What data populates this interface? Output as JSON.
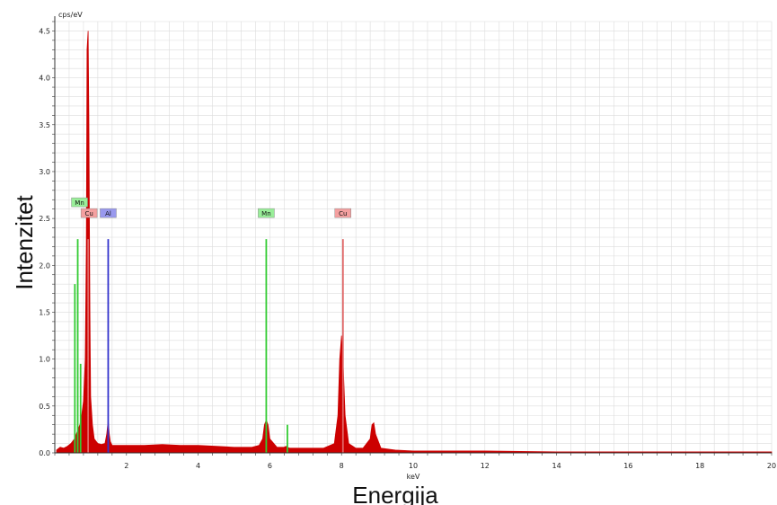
{
  "chart_data": {
    "type": "line",
    "xlabel": "Energija",
    "ylabel": "Intenzitet",
    "x_unit": "keV",
    "y_unit": "cps/eV",
    "xlim": [
      0,
      20
    ],
    "ylim": [
      0,
      4.6
    ],
    "x_ticks": [
      2,
      4,
      6,
      8,
      10,
      12,
      14,
      16,
      18,
      20
    ],
    "y_ticks": [
      0.0,
      0.5,
      1.0,
      1.5,
      2.0,
      2.5,
      3.0,
      3.5,
      4.0,
      4.5
    ],
    "grid": true,
    "colors": {
      "spectrum": "#cc0000",
      "Mn": "#33cc33",
      "Cu": "#e06666",
      "Al": "#3333cc",
      "grid": "#dcdcdc"
    },
    "series": [
      {
        "name": "spectrum",
        "x": [
          0.05,
          0.15,
          0.25,
          0.35,
          0.45,
          0.55,
          0.6,
          0.65,
          0.7,
          0.75,
          0.8,
          0.85,
          0.88,
          0.9,
          0.93,
          0.95,
          0.98,
          1.0,
          1.05,
          1.1,
          1.2,
          1.3,
          1.4,
          1.45,
          1.49,
          1.52,
          1.55,
          1.6,
          1.8,
          2.0,
          2.5,
          3.0,
          3.5,
          4.0,
          4.5,
          5.0,
          5.5,
          5.7,
          5.8,
          5.85,
          5.9,
          5.95,
          6.0,
          6.2,
          6.4,
          6.45,
          6.49,
          6.55,
          6.7,
          7.0,
          7.5,
          7.8,
          7.9,
          7.95,
          8.0,
          8.05,
          8.1,
          8.2,
          8.4,
          8.6,
          8.8,
          8.85,
          8.9,
          8.95,
          9.1,
          9.5,
          10.0,
          11.0,
          12.0,
          14.0,
          16.0,
          18.0,
          20.0
        ],
        "values": [
          0.03,
          0.06,
          0.05,
          0.07,
          0.1,
          0.15,
          0.2,
          0.25,
          0.3,
          0.4,
          0.55,
          1.0,
          2.2,
          4.3,
          4.5,
          3.6,
          1.5,
          0.6,
          0.3,
          0.15,
          0.1,
          0.09,
          0.1,
          0.2,
          0.35,
          0.2,
          0.12,
          0.08,
          0.08,
          0.08,
          0.08,
          0.09,
          0.08,
          0.08,
          0.07,
          0.06,
          0.06,
          0.08,
          0.15,
          0.3,
          0.35,
          0.3,
          0.15,
          0.06,
          0.06,
          0.07,
          0.06,
          0.05,
          0.05,
          0.05,
          0.05,
          0.1,
          0.4,
          1.0,
          1.25,
          0.9,
          0.4,
          0.1,
          0.05,
          0.05,
          0.15,
          0.3,
          0.32,
          0.2,
          0.05,
          0.03,
          0.02,
          0.02,
          0.02,
          0.01,
          0.01,
          0.01,
          0.01
        ]
      }
    ],
    "element_markers": [
      {
        "element": "Mn",
        "energy": 0.56,
        "height": 1.8,
        "label": ""
      },
      {
        "element": "Mn",
        "energy": 0.64,
        "height": 2.28,
        "label": "Mn"
      },
      {
        "element": "Mn",
        "energy": 0.72,
        "height": 0.95,
        "label": ""
      },
      {
        "element": "Cu",
        "energy": 0.93,
        "height": 2.28,
        "label": "Cu"
      },
      {
        "element": "Al",
        "energy": 1.49,
        "height": 2.28,
        "label": "Al"
      },
      {
        "element": "Mn",
        "energy": 5.9,
        "height": 2.28,
        "label": "Mn"
      },
      {
        "element": "Mn",
        "energy": 6.49,
        "height": 0.3,
        "label": ""
      },
      {
        "element": "Cu",
        "energy": 8.04,
        "height": 2.28,
        "label": "Cu"
      }
    ]
  }
}
